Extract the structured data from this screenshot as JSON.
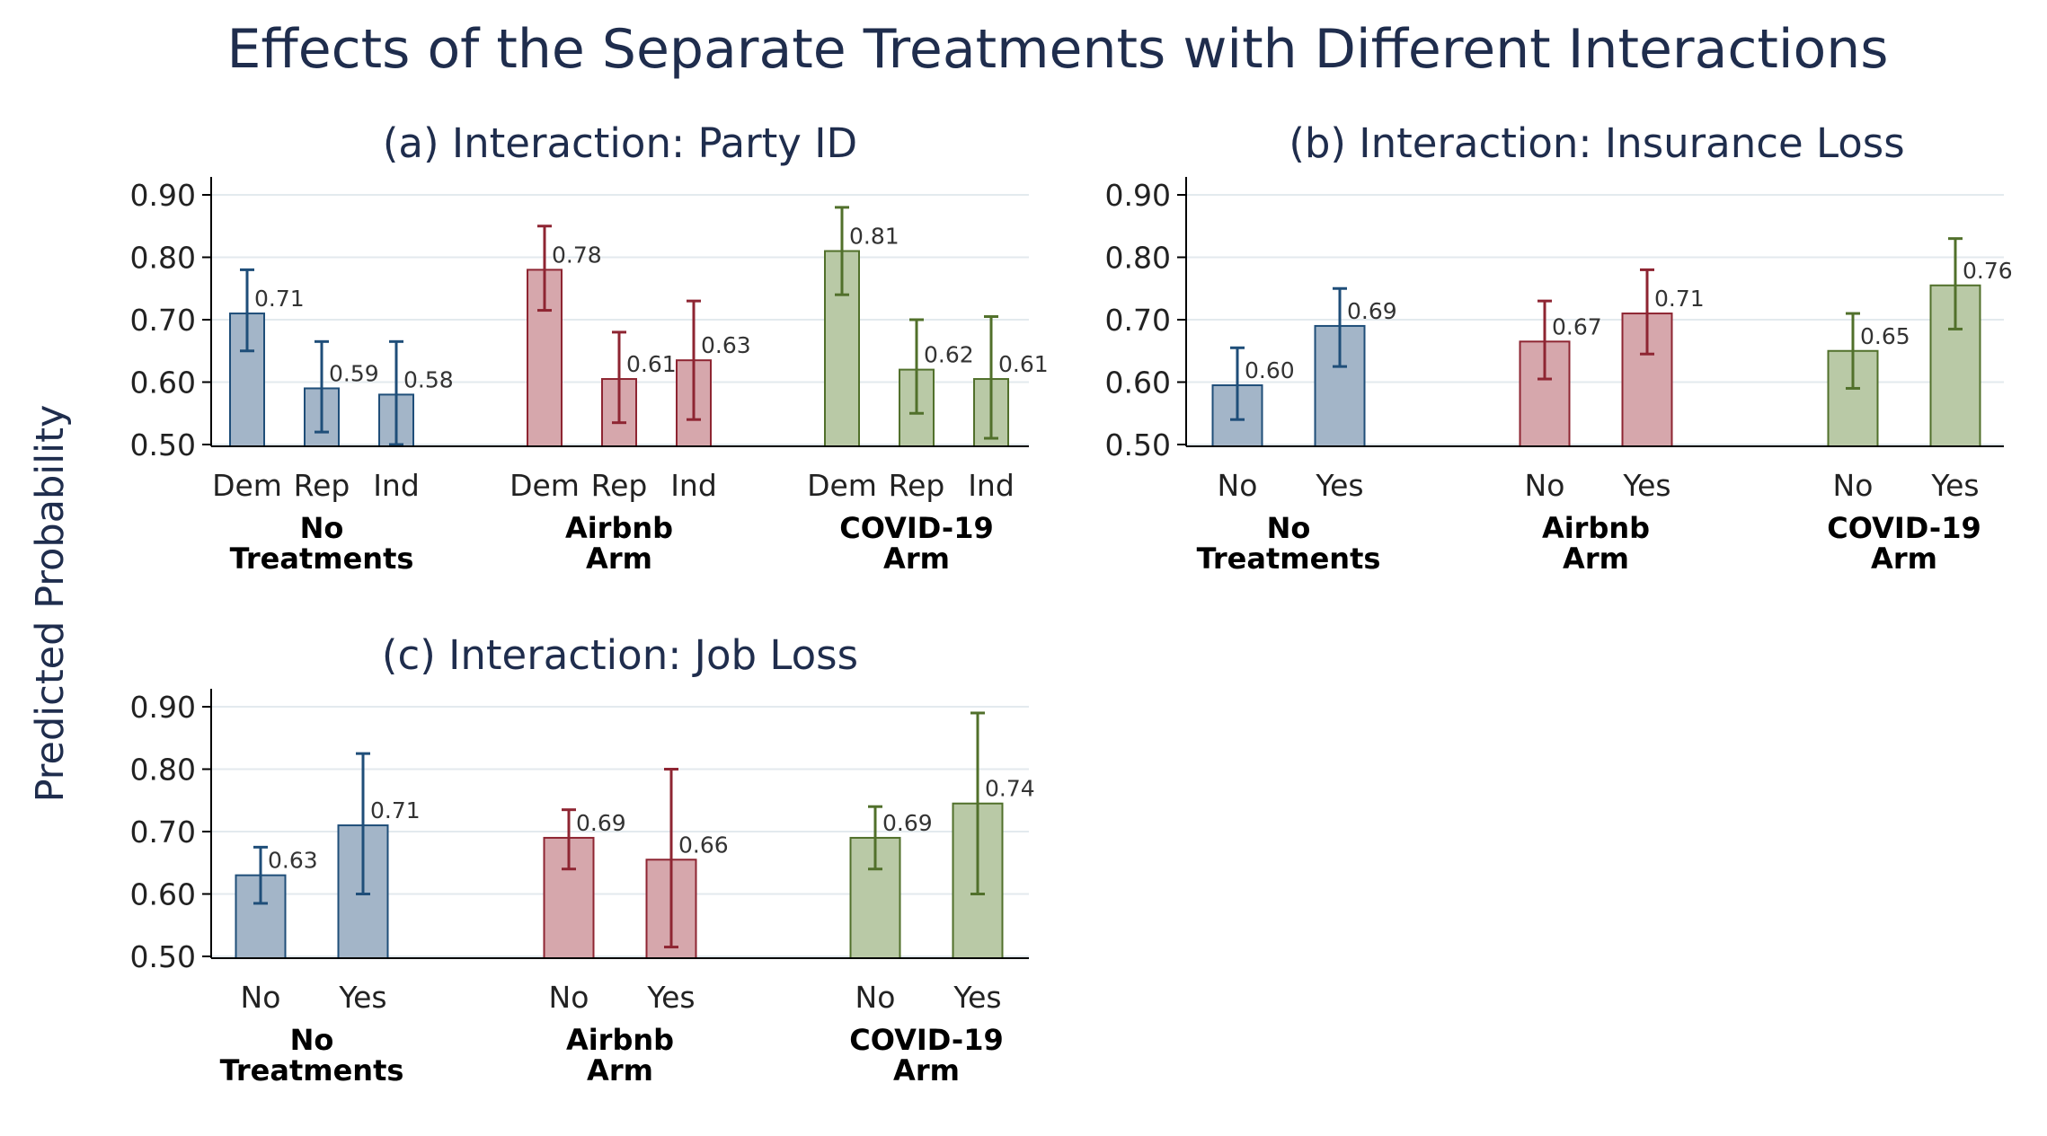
{
  "title": "Effects of the Separate Treatments with Different Interactions",
  "y_axis_title": "Predicted Probability",
  "colors": {
    "title": "#1f2d4d",
    "grid": "#e3eaee",
    "no_treatments": {
      "fill": "#a3b5c8",
      "stroke": "#1f4e79"
    },
    "airbnb_arm": {
      "fill": "#d6a7ac",
      "stroke": "#8e2532"
    },
    "covid_arm": {
      "fill": "#b9c9a6",
      "stroke": "#51702b"
    }
  },
  "chart_data": [
    {
      "type": "bar",
      "title": "(a) Interaction: Party ID",
      "ylim": [
        0.5,
        0.9
      ],
      "yticks": [
        "0.50",
        "0.60",
        "0.70",
        "0.80",
        "0.90"
      ],
      "grid": true,
      "groups": [
        {
          "name": [
            "No",
            "Treatments"
          ],
          "color_key": "no_treatments",
          "bars": [
            {
              "label": "Dem",
              "value": 0.71,
              "value_label": "0.71",
              "ci": [
                0.65,
                0.78
              ]
            },
            {
              "label": "Rep",
              "value": 0.59,
              "value_label": "0.59",
              "ci": [
                0.52,
                0.665
              ]
            },
            {
              "label": "Ind",
              "value": 0.58,
              "value_label": "0.58",
              "ci": [
                0.5,
                0.665
              ]
            }
          ]
        },
        {
          "name": [
            "Airbnb",
            "Arm"
          ],
          "color_key": "airbnb_arm",
          "bars": [
            {
              "label": "Dem",
              "value": 0.78,
              "value_label": "0.78",
              "ci": [
                0.715,
                0.85
              ]
            },
            {
              "label": "Rep",
              "value": 0.605,
              "value_label": "0.61",
              "ci": [
                0.535,
                0.68
              ]
            },
            {
              "label": "Ind",
              "value": 0.635,
              "value_label": "0.63",
              "ci": [
                0.54,
                0.73
              ]
            }
          ]
        },
        {
          "name": [
            "COVID-19",
            "Arm"
          ],
          "color_key": "covid_arm",
          "bars": [
            {
              "label": "Dem",
              "value": 0.81,
              "value_label": "0.81",
              "ci": [
                0.74,
                0.88
              ]
            },
            {
              "label": "Rep",
              "value": 0.62,
              "value_label": "0.62",
              "ci": [
                0.55,
                0.7
              ]
            },
            {
              "label": "Ind",
              "value": 0.605,
              "value_label": "0.61",
              "ci": [
                0.51,
                0.705
              ]
            }
          ]
        }
      ]
    },
    {
      "type": "bar",
      "title": "(b) Interaction: Insurance Loss",
      "ylim": [
        0.5,
        0.9
      ],
      "yticks": [
        "0.50",
        "0.60",
        "0.70",
        "0.80",
        "0.90"
      ],
      "grid": true,
      "groups": [
        {
          "name": [
            "No",
            "Treatments"
          ],
          "color_key": "no_treatments",
          "bars": [
            {
              "label": "No",
              "value": 0.595,
              "value_label": "0.60",
              "ci": [
                0.54,
                0.655
              ]
            },
            {
              "label": "Yes",
              "value": 0.69,
              "value_label": "0.69",
              "ci": [
                0.625,
                0.75
              ]
            }
          ]
        },
        {
          "name": [
            "Airbnb",
            "Arm"
          ],
          "color_key": "airbnb_arm",
          "bars": [
            {
              "label": "No",
              "value": 0.665,
              "value_label": "0.67",
              "ci": [
                0.605,
                0.73
              ]
            },
            {
              "label": "Yes",
              "value": 0.71,
              "value_label": "0.71",
              "ci": [
                0.645,
                0.78
              ]
            }
          ]
        },
        {
          "name": [
            "COVID-19",
            "Arm"
          ],
          "color_key": "covid_arm",
          "bars": [
            {
              "label": "No",
              "value": 0.65,
              "value_label": "0.65",
              "ci": [
                0.59,
                0.71
              ]
            },
            {
              "label": "Yes",
              "value": 0.755,
              "value_label": "0.76",
              "ci": [
                0.685,
                0.83
              ]
            }
          ]
        }
      ]
    },
    {
      "type": "bar",
      "title": "(c) Interaction: Job Loss",
      "ylim": [
        0.5,
        0.9
      ],
      "yticks": [
        "0.50",
        "0.60",
        "0.70",
        "0.80",
        "0.90"
      ],
      "grid": true,
      "groups": [
        {
          "name": [
            "No",
            "Treatments"
          ],
          "color_key": "no_treatments",
          "bars": [
            {
              "label": "No",
              "value": 0.63,
              "value_label": "0.63",
              "ci": [
                0.585,
                0.675
              ]
            },
            {
              "label": "Yes",
              "value": 0.71,
              "value_label": "0.71",
              "ci": [
                0.6,
                0.825
              ]
            }
          ]
        },
        {
          "name": [
            "Airbnb",
            "Arm"
          ],
          "color_key": "airbnb_arm",
          "bars": [
            {
              "label": "No",
              "value": 0.69,
              "value_label": "0.69",
              "ci": [
                0.64,
                0.735
              ]
            },
            {
              "label": "Yes",
              "value": 0.655,
              "value_label": "0.66",
              "ci": [
                0.515,
                0.8
              ]
            }
          ]
        },
        {
          "name": [
            "COVID-19",
            "Arm"
          ],
          "color_key": "covid_arm",
          "bars": [
            {
              "label": "No",
              "value": 0.69,
              "value_label": "0.69",
              "ci": [
                0.64,
                0.74
              ]
            },
            {
              "label": "Yes",
              "value": 0.745,
              "value_label": "0.74",
              "ci": [
                0.6,
                0.89
              ]
            }
          ]
        }
      ]
    }
  ]
}
